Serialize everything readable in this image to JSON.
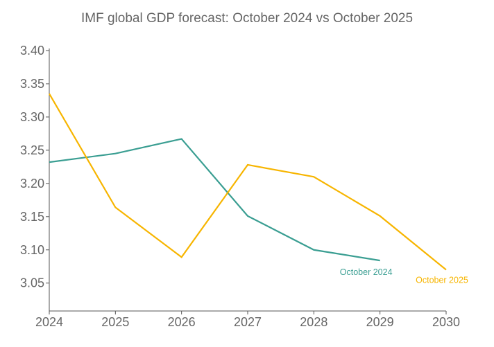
{
  "chart_data": {
    "type": "line",
    "title": "IMF global GDP forecast: October 2024 vs October 2025",
    "xlabel": "",
    "ylabel": "",
    "x": [
      2024,
      2025,
      2026,
      2027,
      2028,
      2029,
      2030
    ],
    "xlim": [
      2024,
      2030
    ],
    "ylim": [
      3.008,
      3.4
    ],
    "yticks": [
      3.05,
      3.1,
      3.15,
      3.2,
      3.25,
      3.3,
      3.35,
      3.4
    ],
    "grid": false,
    "legend": "direct labels at line ends",
    "series": [
      {
        "name": "October 2024",
        "color": "#3a9e92",
        "x": [
          2024,
          2025,
          2026,
          2027,
          2028,
          2029
        ],
        "values": [
          3.232,
          3.245,
          3.267,
          3.151,
          3.1,
          3.084
        ]
      },
      {
        "name": "October 2025",
        "color": "#f7b500",
        "x": [
          2024,
          2025,
          2026,
          2027,
          2028,
          2029,
          2030
        ],
        "values": [
          3.335,
          3.164,
          3.089,
          3.228,
          3.21,
          3.151,
          3.07
        ]
      }
    ]
  }
}
